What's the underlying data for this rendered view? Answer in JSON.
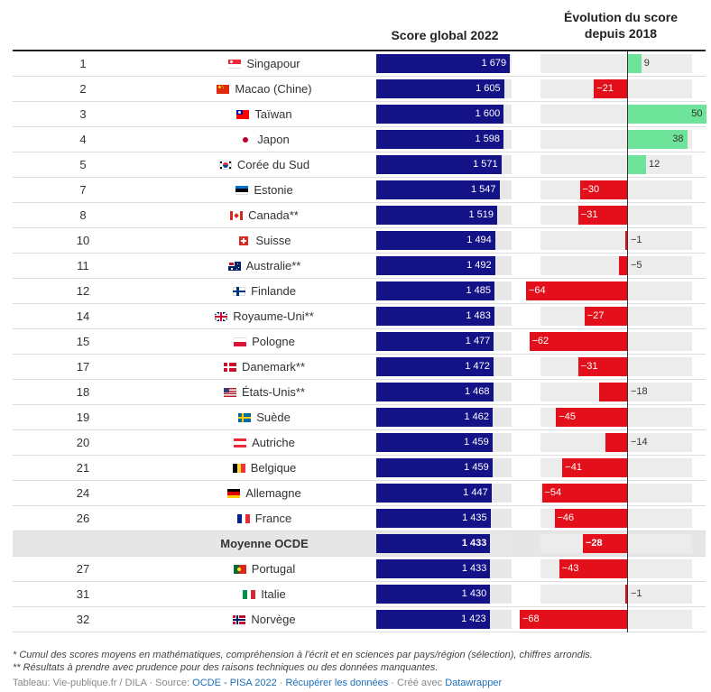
{
  "header": {
    "score_title": "Score global 2022",
    "evolution_title_line1": "Évolution du score",
    "evolution_title_line2": "depuis 2018"
  },
  "colors": {
    "score_bar": "#131287",
    "positive": "#6ee49a",
    "negative": "#e3101c",
    "track": "#e7e7e7"
  },
  "chart_data": {
    "type": "table",
    "columns": [
      "Rang",
      "Pays/région",
      "Score global 2022",
      "Évolution du score depuis 2018"
    ],
    "score_range": [
      0,
      1700
    ],
    "evolution_range": [
      -71,
      70
    ],
    "rows": [
      {
        "rank": "1",
        "country": "Singapour",
        "flag": "sg",
        "score": 1679,
        "score_label": "1 679",
        "change": 9,
        "change_label": "9"
      },
      {
        "rank": "2",
        "country": "Macao (Chine)",
        "flag": "mo",
        "score": 1605,
        "score_label": "1 605",
        "change": -21,
        "change_label": "−21"
      },
      {
        "rank": "3",
        "country": "Taïwan",
        "flag": "tw",
        "score": 1600,
        "score_label": "1 600",
        "change": 50,
        "change_label": "50"
      },
      {
        "rank": "4",
        "country": "Japon",
        "flag": "jp",
        "score": 1598,
        "score_label": "1 598",
        "change": 38,
        "change_label": "38"
      },
      {
        "rank": "5",
        "country": "Corée du Sud",
        "flag": "kr",
        "score": 1571,
        "score_label": "1 571",
        "change": 12,
        "change_label": "12"
      },
      {
        "rank": "7",
        "country": "Estonie",
        "flag": "ee",
        "score": 1547,
        "score_label": "1 547",
        "change": -30,
        "change_label": "−30"
      },
      {
        "rank": "8",
        "country": "Canada**",
        "flag": "ca",
        "score": 1519,
        "score_label": "1 519",
        "change": -31,
        "change_label": "−31"
      },
      {
        "rank": "10",
        "country": "Suisse",
        "flag": "ch",
        "score": 1494,
        "score_label": "1 494",
        "change": -1,
        "change_label": "−1"
      },
      {
        "rank": "11",
        "country": "Australie**",
        "flag": "au",
        "score": 1492,
        "score_label": "1 492",
        "change": -5,
        "change_label": "−5"
      },
      {
        "rank": "12",
        "country": "Finlande",
        "flag": "fi",
        "score": 1485,
        "score_label": "1 485",
        "change": -64,
        "change_label": "−64"
      },
      {
        "rank": "14",
        "country": "Royaume-Uni**",
        "flag": "gb",
        "score": 1483,
        "score_label": "1 483",
        "change": -27,
        "change_label": "−27"
      },
      {
        "rank": "15",
        "country": "Pologne",
        "flag": "pl",
        "score": 1477,
        "score_label": "1 477",
        "change": -62,
        "change_label": "−62"
      },
      {
        "rank": "17",
        "country": "Danemark**",
        "flag": "dk",
        "score": 1472,
        "score_label": "1 472",
        "change": -31,
        "change_label": "−31"
      },
      {
        "rank": "18",
        "country": "États-Unis**",
        "flag": "us",
        "score": 1468,
        "score_label": "1 468",
        "change": -18,
        "change_label": "−18"
      },
      {
        "rank": "19",
        "country": "Suède",
        "flag": "se",
        "score": 1462,
        "score_label": "1 462",
        "change": -45,
        "change_label": "−45"
      },
      {
        "rank": "20",
        "country": "Autriche",
        "flag": "at",
        "score": 1459,
        "score_label": "1 459",
        "change": -14,
        "change_label": "−14"
      },
      {
        "rank": "21",
        "country": "Belgique",
        "flag": "be",
        "score": 1459,
        "score_label": "1 459",
        "change": -41,
        "change_label": "−41"
      },
      {
        "rank": "24",
        "country": "Allemagne",
        "flag": "de",
        "score": 1447,
        "score_label": "1 447",
        "change": -54,
        "change_label": "−54"
      },
      {
        "rank": "26",
        "country": "France",
        "flag": "fr",
        "score": 1435,
        "score_label": "1 435",
        "change": -46,
        "change_label": "−46"
      },
      {
        "rank": "",
        "country": "Moyenne OCDE",
        "flag": "",
        "score": 1433,
        "score_label": "1 433",
        "change": -28,
        "change_label": "−28",
        "average": true
      },
      {
        "rank": "27",
        "country": "Portugal",
        "flag": "pt",
        "score": 1433,
        "score_label": "1 433",
        "change": -43,
        "change_label": "−43"
      },
      {
        "rank": "31",
        "country": "Italie",
        "flag": "it",
        "score": 1430,
        "score_label": "1 430",
        "change": -1,
        "change_label": "−1"
      },
      {
        "rank": "32",
        "country": "Norvège",
        "flag": "no",
        "score": 1423,
        "score_label": "1 423",
        "change": -68,
        "change_label": "−68"
      }
    ]
  },
  "notes": {
    "note1": "* Cumul des scores moyens en mathématiques, compréhension à l'écrit et en sciences par pays/région (sélection), chiffres arrondis.",
    "note2": "** Résultats à prendre avec prudence pour des raisons techniques ou des données manquantes."
  },
  "footer": {
    "prefix": "Tableau: Vie-publique.fr / DILA · Source: ",
    "source_link": "OCDE - PISA 2022",
    "sep1": " · ",
    "download_link": "Récupérer les données",
    "sep2": " · Créé avec ",
    "tool_link": "Datawrapper"
  }
}
